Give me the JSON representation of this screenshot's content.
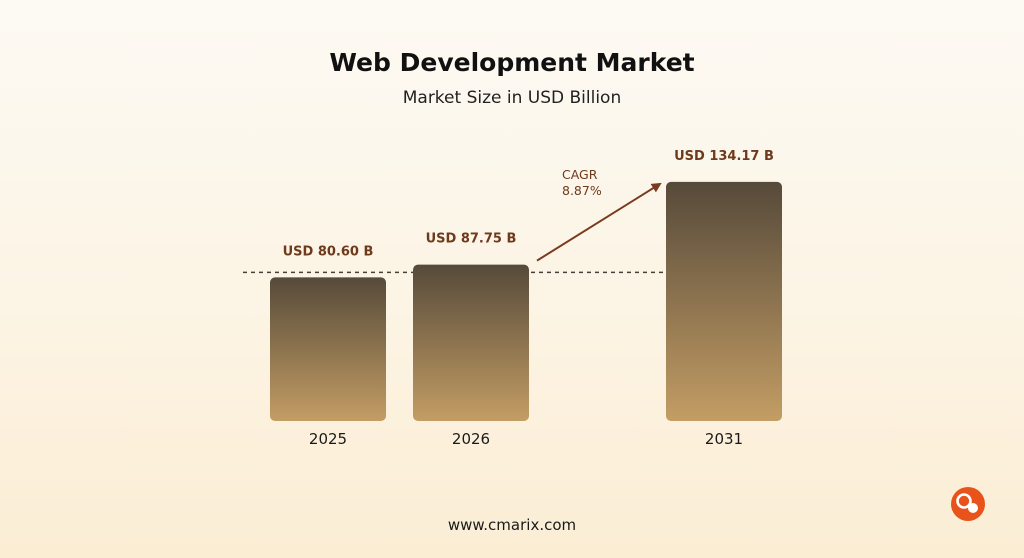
{
  "footer": {
    "website": "www.cmarix.com"
  },
  "colors": {
    "bar_top": "#564a3a",
    "bar_bottom": "#c39d64",
    "label": "#6e3a1c",
    "arrow": "#7a3a1e",
    "logo": "#e8531c"
  },
  "logo": {
    "icon": "cmarix-logo-icon"
  },
  "chart_data": {
    "type": "bar",
    "title": "Web Development Market",
    "subtitle": "Market Size in USD Billion",
    "categories": [
      "2025",
      "2026",
      "2031"
    ],
    "values": [
      80.6,
      87.75,
      134.17
    ],
    "data_labels": [
      "USD 80.60 B",
      "USD 87.75 B",
      "USD 134.17 B"
    ],
    "reference_line": {
      "value": 80.6,
      "style": "dashed"
    },
    "annotation": {
      "label": "CAGR",
      "value": "8.87%",
      "from": "2026",
      "to": "2031"
    },
    "grid": false,
    "legend": "none"
  }
}
